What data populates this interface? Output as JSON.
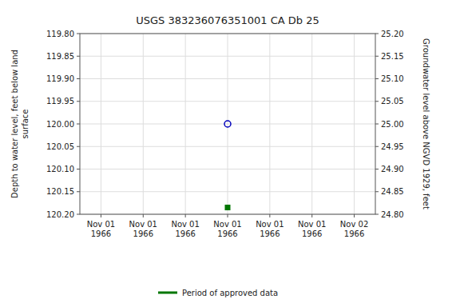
{
  "chart_data": {
    "type": "scatter",
    "title": "USGS 383236076351001 CA Db  25",
    "y_label": "Depth to water level, feet below land\nsurface",
    "y2_label": "Groundwater level above NGVD 1929, feet",
    "categories": [
      "Nov 01\n1966",
      "Nov 01\n1966",
      "Nov 01\n1966",
      "Nov 01\n1966",
      "Nov 01\n1966",
      "Nov 01\n1966",
      "Nov 02\n1966"
    ],
    "series": [
      {
        "color": "#0000bb",
        "marker": "circle",
        "values": [
          null,
          null,
          null,
          120.0,
          null,
          null,
          null
        ]
      },
      {
        "name": "Period of approved data",
        "color": "#007700",
        "marker": "square",
        "values": [
          null,
          null,
          null,
          120.185,
          null,
          null,
          null
        ]
      }
    ],
    "ylim": [
      120.2,
      119.8
    ],
    "yticks": [
      {
        "value": 119.8,
        "label": "119.80"
      },
      {
        "value": 119.85,
        "label": "119.85"
      },
      {
        "value": 119.9,
        "label": "119.90"
      },
      {
        "value": 119.95,
        "label": "119.95"
      },
      {
        "value": 120.0,
        "label": "120.00"
      },
      {
        "value": 120.05,
        "label": "120.05"
      },
      {
        "value": 120.1,
        "label": "120.10"
      },
      {
        "value": 120.15,
        "label": "120.15"
      },
      {
        "value": 120.2,
        "label": "120.20"
      }
    ],
    "y2lim": [
      24.8,
      25.2
    ],
    "y2ticks": [
      {
        "value": 24.8,
        "label": "24.80"
      },
      {
        "value": 24.85,
        "label": "24.85"
      },
      {
        "value": 24.9,
        "label": "24.90"
      },
      {
        "value": 24.95,
        "label": "24.95"
      },
      {
        "value": 25.0,
        "label": "25.00"
      },
      {
        "value": 25.05,
        "label": "25.05"
      },
      {
        "value": 25.1,
        "label": "25.10"
      },
      {
        "value": 25.15,
        "label": "25.15"
      },
      {
        "value": 25.2,
        "label": "25.20"
      }
    ],
    "grid": true,
    "legend": "bottom"
  }
}
